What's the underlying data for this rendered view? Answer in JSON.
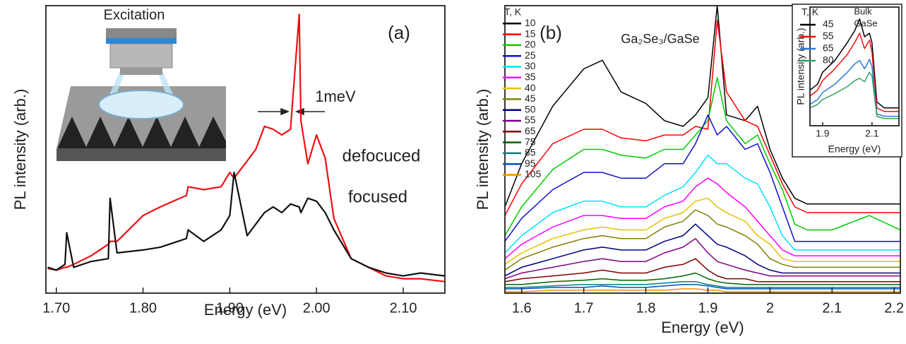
{
  "chart_data": [
    {
      "type": "line",
      "x_label": "Energy (eV)",
      "y_label": "PL intensity (arb.)",
      "annotations": [
        "(a)",
        "Excitation",
        "1meV"
      ],
      "xlim": [
        1.688,
        2.148
      ],
      "ylim": [
        0,
        100
      ],
      "xticks": [
        {
          "value": 1.7,
          "label": "1.70"
        },
        {
          "value": 1.8,
          "label": "1.80"
        },
        {
          "value": 1.9,
          "label": "1.90"
        },
        {
          "value": 2.0,
          "label": "2.00"
        },
        {
          "value": 2.1,
          "label": "2.10"
        }
      ],
      "x": [
        1.69,
        1.7,
        1.71,
        1.712,
        1.72,
        1.74,
        1.76,
        1.762,
        1.77,
        1.8,
        1.82,
        1.85,
        1.852,
        1.87,
        1.89,
        1.9,
        1.905,
        1.92,
        1.93,
        1.94,
        1.95,
        1.96,
        1.97,
        1.98,
        1.982,
        1.99,
        2.0,
        2.01,
        2.02,
        2.04,
        2.06,
        2.08,
        2.1,
        2.12,
        2.148
      ],
      "series": [
        {
          "name": "defocuced",
          "color": "#ee1111",
          "values": [
            8.6,
            8,
            9,
            9,
            10,
            13,
            17,
            18,
            18,
            27,
            30,
            34,
            37,
            36,
            37,
            42,
            40,
            46,
            50,
            58,
            57,
            55,
            57,
            97,
            60,
            45,
            55,
            47,
            26,
            12,
            9,
            6,
            5,
            5,
            4
          ]
        },
        {
          "name": "focused",
          "color": "#111111",
          "values": [
            9,
            8,
            10,
            21,
            9,
            11,
            12,
            33,
            14,
            15,
            16,
            19,
            22,
            18,
            22,
            27,
            42,
            20,
            24,
            28,
            30,
            28,
            31,
            30,
            28,
            33,
            32,
            28,
            22,
            12,
            9,
            7,
            6,
            7,
            6
          ]
        }
      ]
    },
    {
      "type": "line",
      "x_label": "Energy (eV)",
      "y_label": "PL intensity (arb.)",
      "annotations": [
        "(b)",
        "Ga₂Se₃/GaSe"
      ],
      "legend_title": "T, K",
      "xlim": [
        1.573,
        2.21
      ],
      "ylim": [
        0,
        100
      ],
      "xticks": [
        1.6,
        1.7,
        1.8,
        1.9,
        2.0,
        2.1,
        2.2
      ],
      "x": [
        1.573,
        1.6,
        1.65,
        1.7,
        1.73,
        1.76,
        1.8,
        1.83,
        1.86,
        1.88,
        1.9,
        1.915,
        1.93,
        1.96,
        1.98,
        2.0,
        2.02,
        2.04,
        2.06,
        2.1,
        2.16,
        2.21
      ],
      "series": [
        {
          "name": "10",
          "color": "#000000",
          "values": [
            30,
            45,
            65,
            78,
            81,
            70,
            66,
            60,
            58,
            62,
            68,
            100,
            62,
            60,
            65,
            50,
            40,
            33,
            31,
            31,
            31,
            31
          ]
        },
        {
          "name": "15",
          "color": "#ff0000",
          "values": [
            27,
            38,
            52,
            57,
            57,
            54,
            53,
            55,
            55,
            58,
            57,
            95,
            70,
            60,
            58,
            48,
            38,
            30,
            28,
            28,
            28,
            28
          ]
        },
        {
          "name": "20",
          "color": "#00cc00",
          "values": [
            20,
            30,
            43,
            50,
            50,
            48,
            47,
            50,
            50,
            55,
            60,
            75,
            60,
            52,
            55,
            45,
            36,
            24,
            22,
            22,
            27,
            22
          ]
        },
        {
          "name": "25",
          "color": "#1010d0",
          "values": [
            18,
            26,
            36,
            42,
            42,
            40,
            40,
            45,
            45,
            52,
            62,
            55,
            58,
            50,
            52,
            42,
            30,
            18,
            18,
            18,
            18,
            18
          ]
        },
        {
          "name": "30",
          "color": "#00e0ff",
          "values": [
            14,
            20,
            28,
            32,
            32,
            30,
            30,
            34,
            37,
            42,
            48,
            45,
            45,
            40,
            38,
            30,
            20,
            15,
            15,
            15,
            15,
            15
          ]
        },
        {
          "name": "35",
          "color": "#ff00ff",
          "values": [
            12,
            17,
            23,
            27,
            27,
            26,
            26,
            30,
            32,
            37,
            40,
            38,
            35,
            30,
            25,
            20,
            15,
            13,
            13,
            13,
            13,
            13
          ]
        },
        {
          "name": "40",
          "color": "#e8c000",
          "values": [
            10,
            14,
            19,
            22,
            23,
            22,
            22,
            26,
            28,
            32,
            33,
            30,
            28,
            25,
            20,
            17,
            12,
            11,
            11,
            11,
            11,
            11
          ]
        },
        {
          "name": "45",
          "color": "#808000",
          "values": [
            8,
            12,
            16,
            19,
            20,
            19,
            19,
            23,
            25,
            29,
            27,
            24,
            23,
            20,
            17,
            12,
            10,
            9,
            9,
            9,
            9,
            9
          ]
        },
        {
          "name": "50",
          "color": "#000080",
          "values": [
            6,
            9,
            12,
            15,
            16,
            15,
            15,
            18,
            20,
            24,
            20,
            17,
            16,
            13,
            10,
            8,
            7,
            7,
            7,
            7,
            7,
            7
          ]
        },
        {
          "name": "55",
          "color": "#800080",
          "values": [
            5,
            7,
            9,
            11,
            12,
            11,
            11,
            14,
            16,
            19,
            14,
            11,
            10,
            8,
            7,
            6,
            6,
            6,
            6,
            6,
            6,
            6
          ]
        },
        {
          "name": "65",
          "color": "#800000",
          "values": [
            4,
            5,
            6,
            7,
            8,
            7,
            7,
            9,
            10,
            12,
            8,
            6,
            5,
            5,
            4,
            4,
            4,
            4,
            4,
            4,
            4,
            4
          ]
        },
        {
          "name": "75",
          "color": "#006400",
          "values": [
            3,
            3,
            4,
            4.5,
            5,
            4.5,
            4.5,
            5,
            6,
            7,
            5,
            4,
            3.5,
            3,
            3,
            3,
            3,
            3,
            3,
            3,
            3,
            3
          ]
        },
        {
          "name": "85",
          "color": "#008080",
          "values": [
            2,
            2,
            2.5,
            3,
            3,
            3,
            3,
            3.5,
            4,
            4,
            3,
            2.5,
            2,
            2,
            2,
            2,
            2,
            2,
            2,
            2,
            2,
            2
          ]
        },
        {
          "name": "95",
          "color": "#0050c0",
          "values": [
            1.5,
            1.5,
            2,
            2,
            2.5,
            2,
            2,
            2.5,
            3,
            3,
            2.5,
            2,
            1.5,
            1.5,
            1.5,
            1.5,
            1.5,
            1.5,
            1.5,
            1.5,
            1.5,
            1.5
          ]
        },
        {
          "name": "105",
          "color": "#ff8c00",
          "values": [
            0.5,
            0.5,
            1,
            1,
            1,
            1,
            1,
            1,
            1.5,
            1.5,
            1,
            1,
            0.5,
            0.5,
            0.5,
            0.5,
            0.5,
            0.5,
            0.5,
            0.5,
            0.5,
            0.5
          ]
        }
      ]
    },
    {
      "type": "line",
      "x_label": "Energy (eV)",
      "y_label": "PL intensity (arb.)",
      "annotations": [
        "Bulk",
        "GaSe"
      ],
      "legend_title": "T, K",
      "xlim": [
        1.849,
        2.209
      ],
      "ylim": [
        0,
        100
      ],
      "xticks": [
        1.9,
        2.1
      ],
      "x": [
        1.849,
        1.88,
        1.9,
        1.95,
        2.0,
        2.03,
        2.05,
        2.07,
        2.09,
        2.1,
        2.12,
        2.15,
        2.209
      ],
      "series": [
        {
          "name": "45",
          "color": "#000000",
          "values": [
            30,
            35,
            45,
            55,
            70,
            80,
            90,
            75,
            78,
            70,
            20,
            15,
            15
          ]
        },
        {
          "name": "55",
          "color": "#ee1111",
          "values": [
            25,
            30,
            38,
            48,
            60,
            70,
            78,
            65,
            72,
            62,
            15,
            12,
            12
          ]
        },
        {
          "name": "65",
          "color": "#2a7ad8",
          "values": [
            18,
            22,
            28,
            35,
            45,
            52,
            55,
            48,
            56,
            50,
            10,
            8,
            8
          ]
        },
        {
          "name": "80",
          "color": "#2ea060",
          "values": [
            15,
            18,
            22,
            27,
            33,
            38,
            40,
            37,
            45,
            42,
            8,
            6,
            6
          ]
        }
      ]
    }
  ]
}
